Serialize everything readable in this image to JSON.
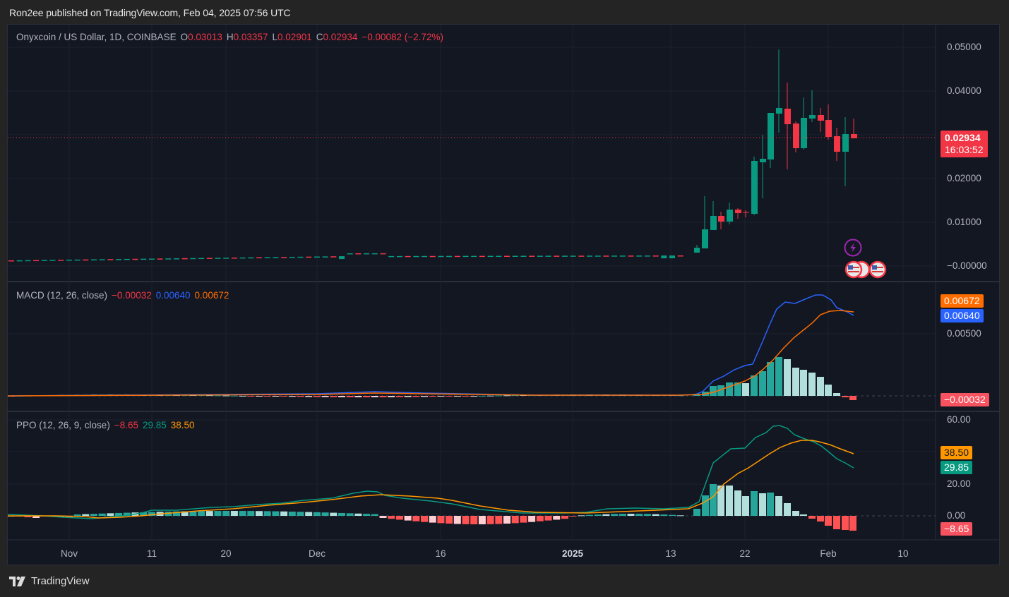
{
  "header": {
    "publisher_line": "Ron2ee published on TradingView.com, Feb 04, 2025 07:56 UTC"
  },
  "symbol": {
    "title": "Onyxcoin / US Dollar, 1D, COINBASE",
    "open_label": "O",
    "open": "0.03013",
    "high_label": "H",
    "high": "0.03357",
    "low_label": "L",
    "low": "0.02901",
    "close_label": "C",
    "close": "0.02934",
    "change": "−0.00082 (−2.72%)"
  },
  "price_axis": {
    "ticks": [
      "0.05000",
      "0.04000",
      "0.02000",
      "0.01000",
      "−0.00000"
    ],
    "last_price": "0.02934",
    "countdown": "16:03:52"
  },
  "macd": {
    "title": "MACD (12, 26, close)",
    "histogram": "−0.00032",
    "macd": "0.00640",
    "signal": "0.00672",
    "ticks": [
      "0.00500"
    ],
    "tags": {
      "signal": "0.00672",
      "macd": "0.00640",
      "histogram": "−0.00032"
    }
  },
  "ppo": {
    "title": "PPO (12, 26, 9, close)",
    "histogram": "−8.65",
    "ppo": "29.85",
    "signal": "38.50",
    "ticks": [
      "60.00",
      "20.00",
      "0.00"
    ],
    "tags": {
      "signal": "38.50",
      "ppo": "29.85",
      "histogram": "−8.65"
    }
  },
  "time_axis": {
    "labels": [
      "Nov",
      "11",
      "20",
      "Dec",
      "16",
      "2025",
      "13",
      "22",
      "Feb",
      "10"
    ]
  },
  "footer": {
    "brand": "TradingView"
  },
  "colors": {
    "up": "#089981",
    "down": "#f23645",
    "macd_line": "#2962ff",
    "macd_signal": "#ff6d00",
    "ppo_line": "#089981",
    "ppo_signal": "#ff9800",
    "hist_up_strong": "#26a69a",
    "hist_up_weak": "#b2dfdb",
    "hist_down_strong": "#ff5252",
    "hist_down_weak": "#ffcdd2",
    "background": "#131722"
  },
  "chart_data": [
    {
      "type": "candlestick",
      "title": "Onyxcoin / US Dollar, 1D, COINBASE",
      "ylabel": "USD",
      "ylim": [
        0,
        0.05
      ],
      "x_start": "2024-10-25",
      "x_end": "2025-02-04",
      "summary_closes": {
        "2024-10-25": 0.0013,
        "2024-11-15": 0.0014,
        "2024-12-05": 0.0027,
        "2024-12-20": 0.0022,
        "2025-01-10": 0.0025,
        "2025-01-15": 0.004,
        "2025-01-17": 0.0105,
        "2025-01-18": 0.013,
        "2025-01-19": 0.0115,
        "2025-01-20": 0.0138,
        "2025-01-21": 0.013,
        "2025-01-22": 0.0123,
        "2025-01-23": 0.0238,
        "2025-01-24": 0.0245,
        "2025-01-25": 0.034,
        "2025-01-26": 0.0355,
        "2025-01-27": 0.033,
        "2025-01-28": 0.0265,
        "2025-01-29": 0.0335,
        "2025-01-30": 0.0345,
        "2025-01-31": 0.033,
        "2025-02-01": 0.0295,
        "2025-02-02": 0.026,
        "2025-02-03": 0.0301,
        "2025-02-04": 0.02934
      },
      "last": {
        "open": 0.03013,
        "high": 0.03357,
        "low": 0.02901,
        "close": 0.02934
      }
    },
    {
      "type": "line",
      "title": "MACD (12, 26, close)",
      "series": [
        {
          "name": "MACD",
          "last": 0.0064
        },
        {
          "name": "Signal",
          "last": 0.00672
        },
        {
          "name": "Histogram",
          "last": -0.00032
        }
      ],
      "peak_macd": 0.0077,
      "peak_signal": 0.0068
    },
    {
      "type": "line",
      "title": "PPO (12, 26, 9, close)",
      "series": [
        {
          "name": "PPO",
          "last": 29.85
        },
        {
          "name": "Signal",
          "last": 38.5
        },
        {
          "name": "Histogram",
          "last": -8.65
        }
      ],
      "ylim": [
        -10,
        60
      ],
      "peak_ppo": 57,
      "peak_signal": 47
    }
  ]
}
